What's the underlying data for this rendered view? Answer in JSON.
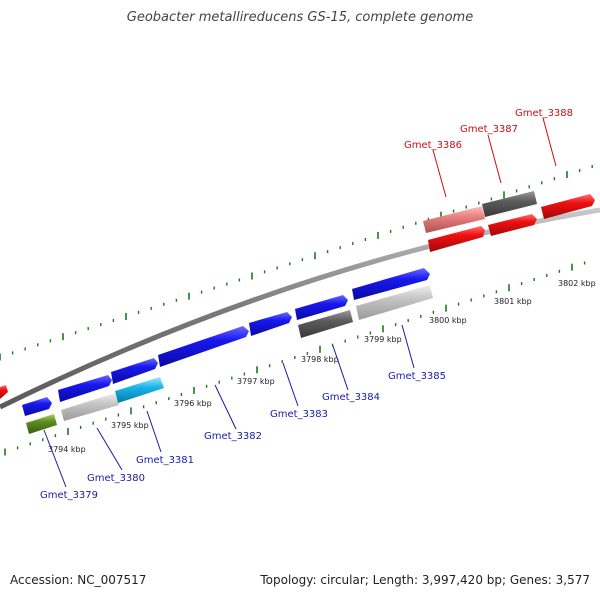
{
  "header": {
    "title": "Geobacter metallireducens GS-15, complete genome"
  },
  "footer": {
    "accession": "Accession: NC_007517",
    "stats": "Topology: circular; Length: 3,997,420 bp; Genes: 3,577"
  },
  "colors": {
    "backbone": "#8a8a8a",
    "tick": "#1a7a1a",
    "forward_gene": "#1010e0",
    "reverse_gene": "#e01010",
    "label_forward": "#1a1aa8",
    "label_reverse": "#cc1010"
  },
  "scale_labels": [
    "3794 kbp",
    "3795 kbp",
    "3796 kbp",
    "3797 kbp",
    "3798 kbp",
    "3799 kbp",
    "3800 kbp",
    "3801 kbp",
    "3802 kbp"
  ],
  "genes": [
    {
      "name": "Gmet_3379",
      "color": "#5b8c1e"
    },
    {
      "name": "Gmet_3380",
      "color": "#b8b8b8"
    },
    {
      "name": "Gmet_3381",
      "color": "#19b4e8"
    },
    {
      "name": "Gmet_3382",
      "color": "#1010e0"
    },
    {
      "name": "Gmet_3383",
      "color": "#1010e0"
    },
    {
      "name": "Gmet_3384",
      "color": "#555555"
    },
    {
      "name": "Gmet_3385",
      "color": "#b8b8b8"
    },
    {
      "name": "Gmet_3386",
      "color": "#e88080"
    },
    {
      "name": "Gmet_3387",
      "color": "#555555"
    },
    {
      "name": "Gmet_3388",
      "color": "#e01010"
    }
  ]
}
